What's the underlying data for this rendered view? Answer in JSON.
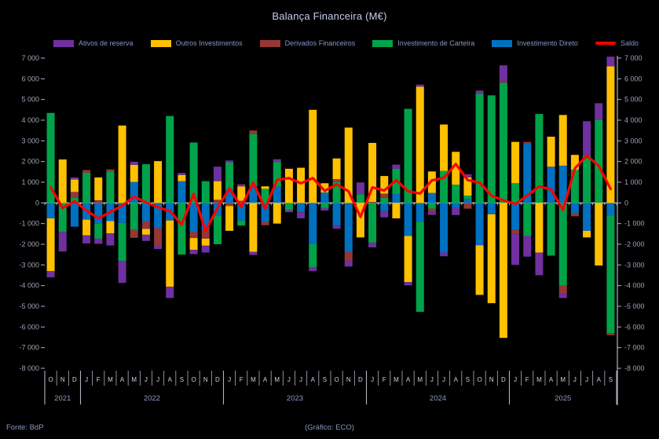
{
  "title": "Balança Financeira (M€)",
  "footer": {
    "source": "Fonte: BdP",
    "credit": "(Gráfico: ECO)"
  },
  "colors": {
    "background": "#000000",
    "title_text": "#c3cdea",
    "legend_text": "#8694c8",
    "axis_text": "#9ba3b8",
    "month_text": "#ccd1df",
    "year_text": "#8e9ac2",
    "zero_line": "#ffffff",
    "grid_line": "#aeb4c0"
  },
  "chart_data": {
    "type": "bar",
    "subtype": "stacked-monthly-bars-with-line",
    "title": "Balança Financeira (M€)",
    "ylabel": "M€",
    "y_axis": {
      "min": -8000,
      "max": 7000,
      "step": 1000
    },
    "legend_position": "top",
    "months": [
      "O",
      "N",
      "D",
      "J",
      "F",
      "M",
      "A",
      "M",
      "J",
      "J",
      "A",
      "S",
      "O",
      "N",
      "D",
      "J",
      "F",
      "M",
      "A",
      "M",
      "J",
      "J",
      "A",
      "S",
      "O",
      "N",
      "D",
      "J",
      "F",
      "M",
      "A",
      "M",
      "J",
      "J",
      "A",
      "S",
      "O",
      "N",
      "D",
      "J",
      "F",
      "M",
      "A",
      "M",
      "J",
      "J",
      "A",
      "S"
    ],
    "years": [
      {
        "label": "2021",
        "start": 0,
        "count": 3
      },
      {
        "label": "2022",
        "start": 3,
        "count": 12
      },
      {
        "label": "2023",
        "start": 15,
        "count": 12
      },
      {
        "label": "2024",
        "start": 27,
        "count": 12
      },
      {
        "label": "2025",
        "start": 39,
        "count": 9
      }
    ],
    "legend": [
      {
        "label": "Ativos de reserva",
        "color": "#7030A0",
        "swatch": "box"
      },
      {
        "label": "Outros Investimentos",
        "color": "#FFC000",
        "swatch": "box"
      },
      {
        "label": "Derivados Financeiros",
        "color": "#953735",
        "swatch": "box"
      },
      {
        "label": "Investimento de Carteira",
        "color": "#00A349",
        "swatch": "box"
      },
      {
        "label": "Investimento Direto",
        "color": "#0070C0",
        "swatch": "box"
      },
      {
        "label": "Saldo",
        "color": "#FF0000",
        "swatch": "line"
      }
    ],
    "series": [
      {
        "name": "Investimento Direto",
        "color": "#0070C0",
        "values": [
          -750,
          0,
          -1150,
          -810,
          -1000,
          -880,
          -970,
          1010,
          -880,
          -1220,
          -850,
          1050,
          -1410,
          -1290,
          -600,
          650,
          -850,
          780,
          -920,
          780,
          0,
          -450,
          -2000,
          500,
          -1100,
          -2360,
          0,
          0,
          -400,
          430,
          -1600,
          -910,
          480,
          -2400,
          -250,
          190,
          -2050,
          -550,
          0,
          -1300,
          2850,
          0,
          1750,
          1800,
          -500,
          -1350,
          0,
          -600
        ]
      },
      {
        "name": "Investimento de Carteira",
        "color": "#00A349",
        "values": [
          4350,
          -1400,
          250,
          1460,
          -730,
          1520,
          -1830,
          -1310,
          1870,
          0,
          4200,
          -2500,
          2920,
          1050,
          -1400,
          1300,
          -250,
          2550,
          680,
          1200,
          -350,
          0,
          -1100,
          -250,
          1000,
          0,
          420,
          -1920,
          250,
          1220,
          4550,
          -4360,
          -280,
          1550,
          880,
          160,
          5280,
          5200,
          5810,
          950,
          -1600,
          4300,
          -2550,
          -4000,
          1600,
          2300,
          4000,
          -5700
        ]
      },
      {
        "name": "Derivados Financeiros",
        "color": "#953735",
        "values": [
          0,
          0,
          280,
          130,
          130,
          100,
          0,
          -380,
          -380,
          -820,
          0,
          0,
          -290,
          -440,
          150,
          -150,
          100,
          170,
          -160,
          0,
          0,
          0,
          0,
          0,
          150,
          -440,
          0,
          50,
          200,
          0,
          0,
          0,
          -150,
          0,
          0,
          -280,
          0,
          0,
          80,
          -200,
          100,
          0,
          0,
          -400,
          -150,
          0,
          0,
          -100
        ]
      },
      {
        "name": "Outros Investimentos",
        "color": "#FFC000",
        "values": [
          -2550,
          2100,
          600,
          -760,
          1100,
          -590,
          3740,
          830,
          -280,
          2020,
          -3200,
          300,
          -570,
          -340,
          900,
          -1200,
          700,
          -2370,
          120,
          -1000,
          1650,
          1700,
          4500,
          450,
          1000,
          3640,
          -1670,
          2850,
          850,
          -750,
          -2230,
          5620,
          1040,
          2240,
          1590,
          880,
          -2400,
          -4300,
          -6530,
          2000,
          0,
          -2400,
          1450,
          2450,
          720,
          -320,
          -3030,
          6600
        ]
      },
      {
        "name": "Ativos de reserva",
        "color": "#7030A0",
        "values": [
          -300,
          -950,
          100,
          -390,
          -250,
          -590,
          -1070,
          150,
          -300,
          -190,
          -550,
          100,
          -210,
          -330,
          700,
          100,
          100,
          -150,
          0,
          130,
          -100,
          -300,
          -200,
          -120,
          -150,
          -280,
          570,
          -230,
          -300,
          200,
          -160,
          100,
          -150,
          -180,
          -340,
          150,
          150,
          0,
          760,
          -1500,
          -1000,
          -1100,
          0,
          -200,
          0,
          1650,
          820,
          470
        ]
      }
    ],
    "line": {
      "name": "Saldo",
      "color": "#FF0000",
      "values": [
        750,
        -250,
        80,
        -370,
        -750,
        -440,
        -130,
        300,
        30,
        -210,
        -400,
        -1050,
        440,
        -1350,
        -250,
        700,
        -200,
        980,
        -280,
        1110,
        1200,
        950,
        1200,
        580,
        900,
        560,
        -680,
        750,
        600,
        1100,
        560,
        450,
        1090,
        1210,
        1880,
        1100,
        980,
        350,
        120,
        -50,
        350,
        800,
        650,
        -350,
        1670,
        2280,
        1790,
        670
      ]
    }
  }
}
